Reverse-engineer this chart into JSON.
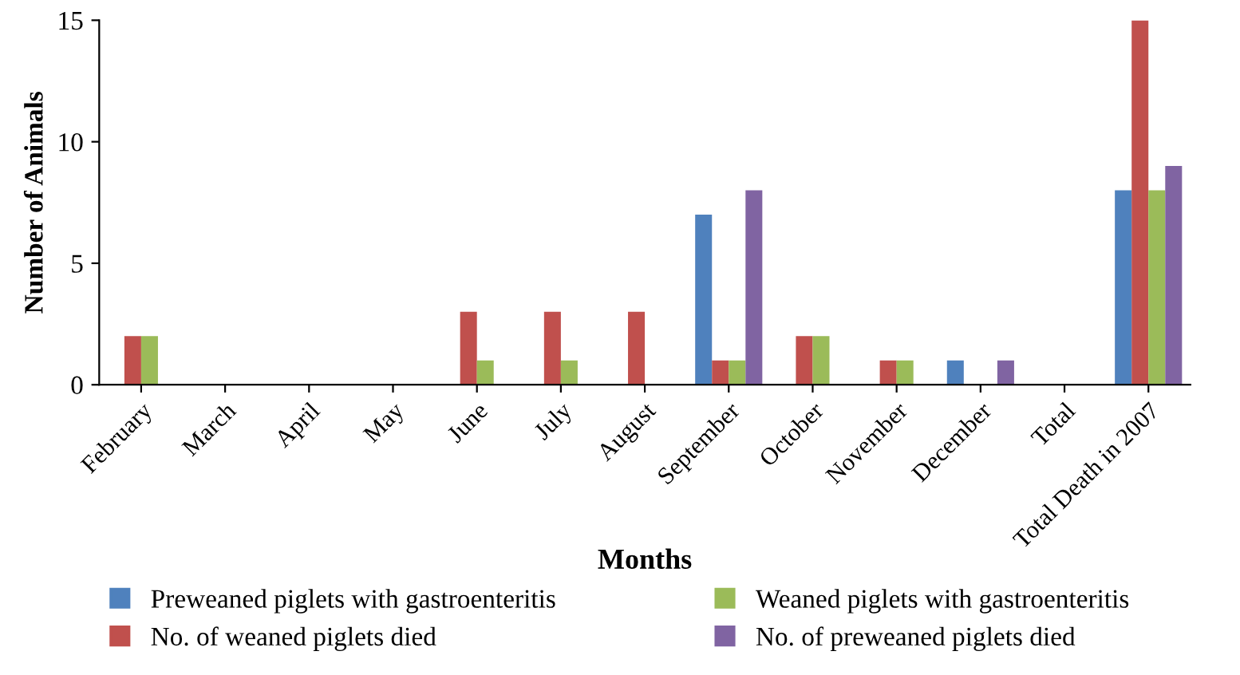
{
  "chart_data": {
    "type": "bar",
    "xlabel": "Months",
    "ylabel": "Number of Animals",
    "categories": [
      "February",
      "March",
      "April",
      "May",
      "June",
      "July",
      "August",
      "September",
      "October",
      "November",
      "December",
      "Total",
      "Total Death in 2007"
    ],
    "series": [
      {
        "name": "Preweaned piglets with gastroenteritis",
        "color": "#4f81bd",
        "values": [
          0,
          0,
          0,
          0,
          0,
          0,
          0,
          7,
          0,
          0,
          1,
          0,
          8
        ]
      },
      {
        "name": "No. of weaned piglets died",
        "color": "#c0504d",
        "values": [
          2,
          0,
          0,
          0,
          3,
          3,
          3,
          1,
          2,
          1,
          0,
          0,
          15
        ]
      },
      {
        "name": "Weaned piglets with gastroenteritis",
        "color": "#9bbb59",
        "values": [
          2,
          0,
          0,
          0,
          1,
          1,
          0,
          1,
          2,
          1,
          0,
          0,
          8
        ]
      },
      {
        "name": "No. of preweaned piglets died",
        "color": "#8064a2",
        "values": [
          0,
          0,
          0,
          0,
          0,
          0,
          0,
          8,
          0,
          0,
          1,
          0,
          9
        ]
      }
    ],
    "ylim": [
      0,
      15
    ],
    "yticks": [
      0,
      5,
      10,
      15
    ],
    "grid": false,
    "legend": "bottom"
  }
}
